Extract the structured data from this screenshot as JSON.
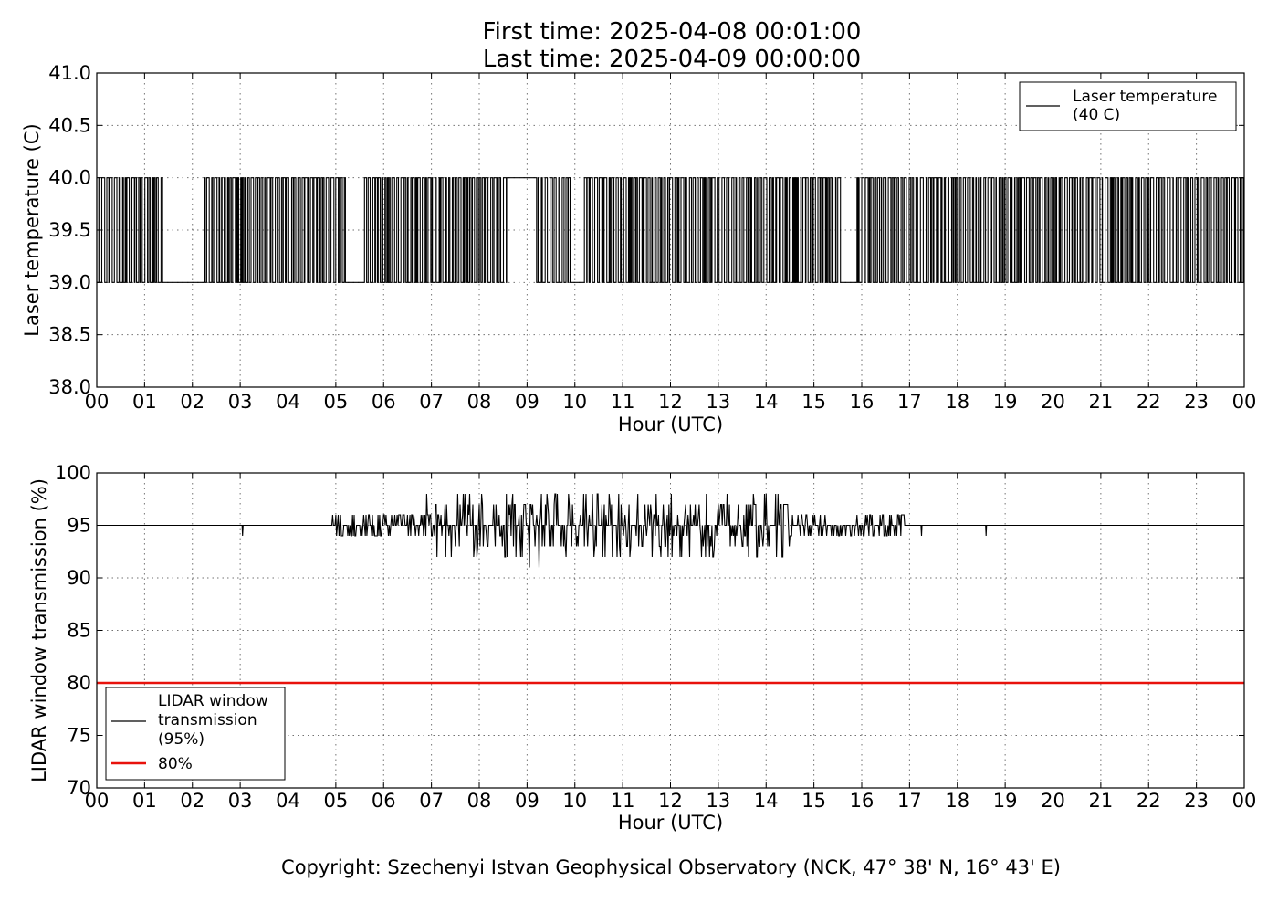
{
  "header": {
    "first_time": "First time: 2025-04-08 00:01:00",
    "last_time": "Last time: 2025-04-09 00:00:00"
  },
  "footer": {
    "copyright": "Copyright: Szechenyi Istvan Geophysical Observatory (NCK, 47° 38' N, 16° 43' E)"
  },
  "chart_data": [
    {
      "type": "line",
      "title": "",
      "xlabel": "Hour (UTC)",
      "ylabel": "Laser temperature (C)",
      "xlim": [
        0,
        24
      ],
      "ylim": [
        38.0,
        41.0
      ],
      "x_tick_labels": [
        "00",
        "01",
        "02",
        "03",
        "04",
        "05",
        "06",
        "07",
        "08",
        "09",
        "10",
        "11",
        "12",
        "13",
        "14",
        "15",
        "16",
        "17",
        "18",
        "19",
        "20",
        "21",
        "22",
        "23",
        "00"
      ],
      "y_tick_labels": [
        "38.0",
        "38.5",
        "39.0",
        "39.5",
        "40.0",
        "40.5",
        "41.0"
      ],
      "grid": true,
      "legend_position": "top-right",
      "series": [
        {
          "name": "Laser temperature\n(40 C)",
          "color": "#000000",
          "sampling_minutes": 1,
          "levels": [
            39.0,
            40.0
          ],
          "segments": [
            {
              "start": 0.0,
              "end": 1.4,
              "mode": "toggle"
            },
            {
              "start": 1.4,
              "end": 2.25,
              "mode": "constant",
              "value": 39.0
            },
            {
              "start": 2.25,
              "end": 3.9,
              "mode": "toggle"
            },
            {
              "start": 3.9,
              "end": 5.2,
              "mode": "toggle"
            },
            {
              "start": 5.2,
              "end": 5.6,
              "mode": "constant",
              "value": 39.0
            },
            {
              "start": 5.6,
              "end": 8.6,
              "mode": "toggle"
            },
            {
              "start": 8.6,
              "end": 9.2,
              "mode": "constant",
              "value": 40.0
            },
            {
              "start": 9.2,
              "end": 9.9,
              "mode": "toggle"
            },
            {
              "start": 9.9,
              "end": 10.2,
              "mode": "constant",
              "value": 39.0
            },
            {
              "start": 10.2,
              "end": 15.6,
              "mode": "toggle"
            },
            {
              "start": 15.6,
              "end": 15.9,
              "mode": "constant",
              "value": 39.0
            },
            {
              "start": 15.9,
              "end": 24.0,
              "mode": "toggle"
            }
          ]
        }
      ]
    },
    {
      "type": "line",
      "title": "",
      "xlabel": "Hour (UTC)",
      "ylabel": "LIDAR window transmission (%)",
      "xlim": [
        0,
        24
      ],
      "ylim": [
        70,
        100
      ],
      "x_tick_labels": [
        "00",
        "01",
        "02",
        "03",
        "04",
        "05",
        "06",
        "07",
        "08",
        "09",
        "10",
        "11",
        "12",
        "13",
        "14",
        "15",
        "16",
        "17",
        "18",
        "19",
        "20",
        "21",
        "22",
        "23",
        "00"
      ],
      "y_tick_labels": [
        "70",
        "75",
        "80",
        "85",
        "90",
        "95",
        "100"
      ],
      "grid": true,
      "legend_position": "bottom-left",
      "series": [
        {
          "name": "LIDAR window\ntransmission\n(95%)",
          "color": "#000000",
          "baseline": 95,
          "noisy_interval": [
            4.9,
            16.9
          ],
          "isolated_dips": [
            {
              "x": 3.05,
              "y": 94
            },
            {
              "x": 17.25,
              "y": 94
            },
            {
              "x": 18.6,
              "y": 94
            }
          ],
          "peaks": [
            {
              "x": 6.9,
              "y": 98
            },
            {
              "x": 7.55,
              "y": 98
            },
            {
              "x": 14.0,
              "y": 98
            },
            {
              "x": 9.05,
              "y": 91
            },
            {
              "x": 9.25,
              "y": 91
            }
          ]
        },
        {
          "name": "80%",
          "color": "#e8120c",
          "values_constant": 80
        }
      ]
    }
  ]
}
